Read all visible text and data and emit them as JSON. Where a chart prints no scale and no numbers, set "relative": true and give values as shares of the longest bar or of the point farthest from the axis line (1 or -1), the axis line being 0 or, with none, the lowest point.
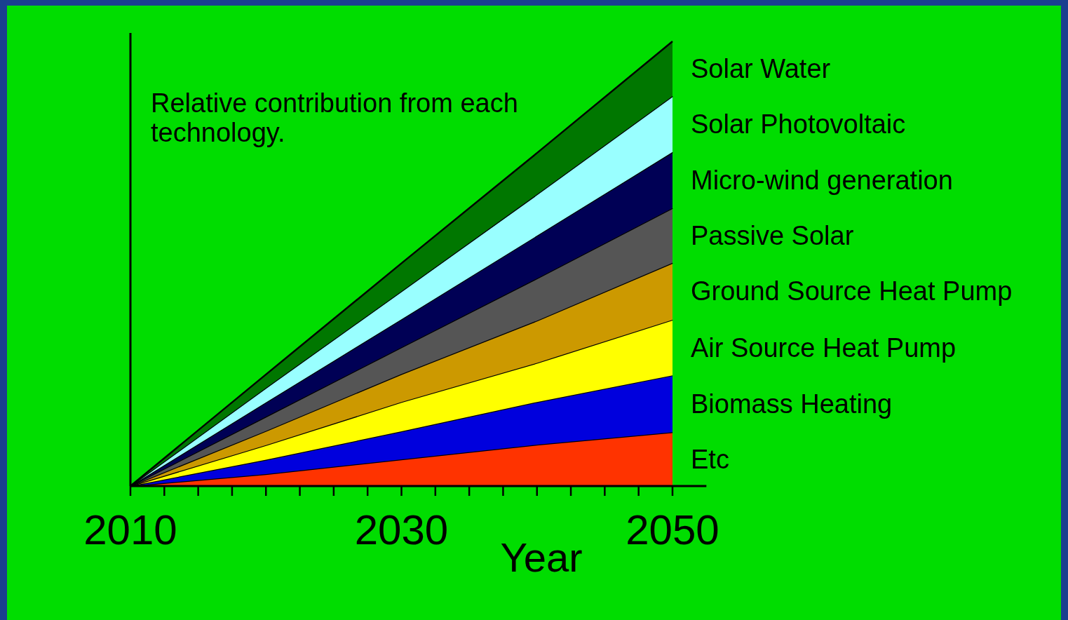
{
  "chart_data": {
    "type": "area",
    "stacked": true,
    "relative": true,
    "legend": "right",
    "xlabel": "Year",
    "annotations": [
      "Relative contribution from each technology."
    ],
    "x": [
      2010,
      2020,
      2030,
      2040,
      2050
    ],
    "xlim": [
      2010,
      2052.5
    ],
    "xticks": [
      2010,
      {
        "value": 2012.5,
        "label": null
      },
      {
        "value": 2015,
        "label": null
      },
      {
        "value": 2017.5,
        "label": null
      },
      {
        "value": 2020,
        "label": null
      },
      {
        "value": 2022.5,
        "label": null
      },
      {
        "value": 2025,
        "label": null
      },
      {
        "value": 2027.5,
        "label": null
      },
      2030,
      {
        "value": 2032.5,
        "label": null
      },
      {
        "value": 2035,
        "label": null
      },
      {
        "value": 2037.5,
        "label": null
      },
      {
        "value": 2040,
        "label": null
      },
      {
        "value": 2042.5,
        "label": null
      },
      {
        "value": 2045,
        "label": null
      },
      {
        "value": 2047.5,
        "label": null
      },
      2050
    ],
    "series": [
      {
        "name": "Etc",
        "color": "#ff3300",
        "values": [
          0,
          0.027,
          0.06,
          0.093,
          0.121
        ]
      },
      {
        "name": "Biomass Heating",
        "color": "#0000dd",
        "values": [
          0,
          0.032,
          0.063,
          0.096,
          0.128
        ]
      },
      {
        "name": "Air Source Heat Pump",
        "color": "#ffff00",
        "values": [
          0,
          0.033,
          0.066,
          0.088,
          0.125
        ]
      },
      {
        "name": "Ground Source Heat Pump",
        "color": "#cc9900",
        "values": [
          0,
          0.032,
          0.063,
          0.095,
          0.128
        ]
      },
      {
        "name": "Passive Solar",
        "color": "#555555",
        "values": [
          0,
          0.032,
          0.06,
          0.095,
          0.123
        ]
      },
      {
        "name": "Micro-wind generation",
        "color": "#000055",
        "values": [
          0,
          0.032,
          0.063,
          0.096,
          0.126
        ]
      },
      {
        "name": "Solar Photovoltaic",
        "color": "#99ffff",
        "values": [
          0,
          0.033,
          0.063,
          0.093,
          0.126
        ]
      },
      {
        "name": "Solar Water",
        "color": "#007700",
        "values": [
          0,
          0.03,
          0.063,
          0.093,
          0.123
        ]
      }
    ]
  }
}
